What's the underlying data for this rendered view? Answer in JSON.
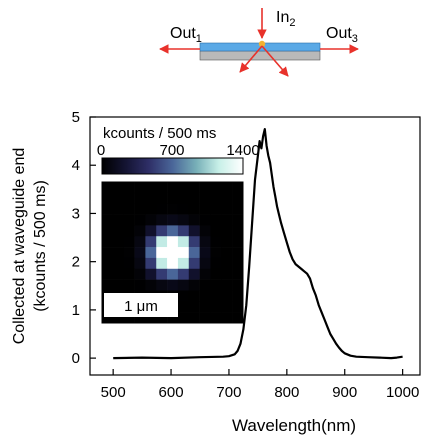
{
  "diagram": {
    "labels": {
      "out_left": "Out",
      "out_left_sub": "1",
      "in_top": "In",
      "in_top_sub": "2",
      "out_right": "Out",
      "out_right_sub": "3"
    },
    "colors": {
      "waveguide": "#5aa9e6",
      "substrate": "#b9b9b9",
      "arrow": "#e8322b",
      "emitter": "#f2b233"
    }
  },
  "chart_data": {
    "type": "line",
    "title": "",
    "xlabel": "Wavelength(nm)",
    "ylabel_line1": "Collected at waveguide end",
    "ylabel_line2": "(kcounts / 500 ms)",
    "xlim": [
      460,
      1030
    ],
    "ylim": [
      -0.35,
      5.0
    ],
    "xticks": [
      500,
      600,
      700,
      800,
      900,
      1000
    ],
    "yticks": [
      0,
      1,
      2,
      3,
      4,
      5
    ],
    "grid": false,
    "series": [
      {
        "x": [
          500,
          550,
          600,
          650,
          690,
          700,
          710,
          715,
          720,
          725,
          730,
          735,
          740,
          745,
          750,
          753,
          756,
          759,
          762,
          765,
          768,
          771,
          774,
          777,
          780,
          783,
          786,
          790,
          795,
          800,
          805,
          810,
          815,
          820,
          825,
          830,
          835,
          840,
          845,
          850,
          855,
          860,
          865,
          870,
          875,
          880,
          885,
          890,
          895,
          900,
          910,
          920,
          940,
          960,
          980,
          990,
          1000
        ],
        "y": [
          0.0,
          0.01,
          0.0,
          0.02,
          0.03,
          0.04,
          0.08,
          0.15,
          0.3,
          0.6,
          1.1,
          1.9,
          2.8,
          3.7,
          4.2,
          4.5,
          4.35,
          4.6,
          4.75,
          4.4,
          4.2,
          4.05,
          3.8,
          3.55,
          3.35,
          3.15,
          3.0,
          2.8,
          2.6,
          2.4,
          2.2,
          2.05,
          1.95,
          1.9,
          1.85,
          1.8,
          1.75,
          1.65,
          1.45,
          1.3,
          1.1,
          0.95,
          0.8,
          0.65,
          0.5,
          0.4,
          0.3,
          0.22,
          0.15,
          0.1,
          0.05,
          0.03,
          0.02,
          0.01,
          0.0,
          0.01,
          0.03
        ]
      }
    ]
  },
  "inset": {
    "colorbar_label": "kcounts / 500 ms",
    "colorbar_ticks": [
      "0",
      "700",
      "1400"
    ],
    "colorbar_range": [
      0,
      1400
    ],
    "scalebar_label": "1 μm",
    "colormap": [
      "#000000",
      "#141433",
      "#2e2e66",
      "#4a6699",
      "#78b0b8",
      "#c8f0e8",
      "#ffffff"
    ],
    "image": [
      [
        0,
        0,
        0,
        0,
        0,
        0,
        0,
        0,
        0,
        0,
        0,
        0,
        0
      ],
      [
        0,
        0,
        0,
        0,
        0,
        0,
        0,
        0,
        0,
        0,
        0,
        0,
        0
      ],
      [
        0,
        0,
        0,
        0,
        0,
        5,
        10,
        5,
        0,
        0,
        0,
        0,
        0
      ],
      [
        0,
        0,
        0,
        5,
        30,
        80,
        110,
        80,
        30,
        5,
        0,
        0,
        0
      ],
      [
        0,
        0,
        0,
        30,
        200,
        520,
        700,
        520,
        200,
        30,
        0,
        0,
        0
      ],
      [
        0,
        0,
        5,
        80,
        520,
        1150,
        1400,
        1150,
        520,
        80,
        5,
        0,
        0
      ],
      [
        0,
        0,
        10,
        110,
        700,
        1400,
        1400,
        1400,
        700,
        110,
        10,
        0,
        0
      ],
      [
        0,
        0,
        5,
        80,
        520,
        1150,
        1400,
        1150,
        520,
        80,
        5,
        0,
        0
      ],
      [
        0,
        0,
        0,
        30,
        200,
        520,
        700,
        520,
        200,
        30,
        0,
        0,
        0
      ],
      [
        0,
        0,
        0,
        5,
        30,
        80,
        110,
        80,
        30,
        5,
        0,
        0,
        0
      ],
      [
        0,
        0,
        0,
        0,
        0,
        5,
        10,
        5,
        0,
        0,
        0,
        0,
        0
      ],
      [
        0,
        0,
        0,
        0,
        0,
        0,
        0,
        0,
        0,
        0,
        0,
        0,
        0
      ],
      [
        0,
        0,
        0,
        0,
        0,
        0,
        0,
        0,
        0,
        0,
        0,
        0,
        0
      ]
    ]
  }
}
